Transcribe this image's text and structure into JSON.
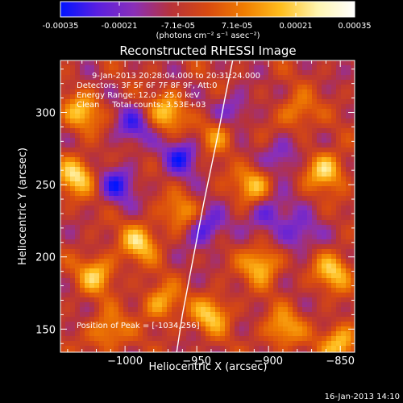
{
  "colors": {
    "background": "#000000",
    "foreground": "#ffffff",
    "colormap": [
      "#0014ff",
      "#5a1fe0",
      "#8a2fb8",
      "#b7323a",
      "#d84a10",
      "#f07d00",
      "#ffbe1e",
      "#fff5b0",
      "#ffffff"
    ]
  },
  "colorbar": {
    "tick_labels": [
      "-0.00035",
      "-0.00021",
      "-7.1e-05",
      "7.1e-05",
      "0.00021",
      "0.00035"
    ],
    "unit_label": "(photons cm⁻² s⁻¹ asec⁻²)",
    "range": [
      -0.00035,
      0.00035
    ]
  },
  "chart_data": {
    "type": "heatmap",
    "title": "Reconstructed RHESSI Image",
    "xlabel": "Heliocentric X (arcsec)",
    "ylabel": "Heliocentric Y (arcsec)",
    "xlim": [
      -1045,
      -840
    ],
    "ylim": [
      134,
      336
    ],
    "x_ticks": [
      -1000,
      -950,
      -900,
      -850
    ],
    "y_ticks": [
      150,
      200,
      250,
      300
    ],
    "grid": false,
    "annotations": [
      "9-Jan-2013 20:28:04.000 to 20:31:24.000",
      "Detectors: 3F 5F 6F 7F 8F 9F, Att:0",
      "Energy Range: 12.0 - 25.0 keV",
      "Clean     Total counts: 3.53E+03"
    ],
    "peak_label": "Position of Peak = [-1034,256]",
    "peak": [
      -1034,
      256
    ],
    "limb_curve": {
      "x": [
        -964,
        -960,
        -955,
        -950,
        -945,
        -940,
        -935,
        -930,
        -925
      ],
      "y": [
        134,
        160,
        186,
        212,
        238,
        262,
        286,
        312,
        336
      ]
    },
    "hot_spots": [
      {
        "x": -1034,
        "y": 256,
        "v": 1.0
      },
      {
        "x": -1030,
        "y": 300,
        "v": 0.8
      },
      {
        "x": -1020,
        "y": 188,
        "v": 0.85
      },
      {
        "x": -1012,
        "y": 148,
        "v": 0.7
      },
      {
        "x": -990,
        "y": 210,
        "v": 0.9
      },
      {
        "x": -975,
        "y": 168,
        "v": 0.75
      },
      {
        "x": -970,
        "y": 300,
        "v": 0.8
      },
      {
        "x": -960,
        "y": 230,
        "v": 0.65
      },
      {
        "x": -940,
        "y": 160,
        "v": 0.85
      },
      {
        "x": -935,
        "y": 285,
        "v": 0.7
      },
      {
        "x": -910,
        "y": 250,
        "v": 0.8
      },
      {
        "x": -905,
        "y": 195,
        "v": 0.9
      },
      {
        "x": -890,
        "y": 150,
        "v": 0.75
      },
      {
        "x": -880,
        "y": 300,
        "v": 0.6
      },
      {
        "x": -860,
        "y": 260,
        "v": 0.95
      },
      {
        "x": -855,
        "y": 190,
        "v": 0.85
      },
      {
        "x": -850,
        "y": 140,
        "v": 0.9
      }
    ],
    "cold_spots": [
      {
        "x": -1005,
        "y": 250,
        "v": -0.7
      },
      {
        "x": -995,
        "y": 290,
        "v": -0.6
      },
      {
        "x": -960,
        "y": 270,
        "v": -0.75
      },
      {
        "x": -945,
        "y": 220,
        "v": -0.8
      },
      {
        "x": -925,
        "y": 300,
        "v": -0.6
      },
      {
        "x": -900,
        "y": 230,
        "v": -0.65
      },
      {
        "x": -880,
        "y": 215,
        "v": -0.6
      },
      {
        "x": -890,
        "y": 270,
        "v": -0.55
      }
    ]
  },
  "footer": {
    "date_stamp": "16-Jan-2013 14:10"
  }
}
